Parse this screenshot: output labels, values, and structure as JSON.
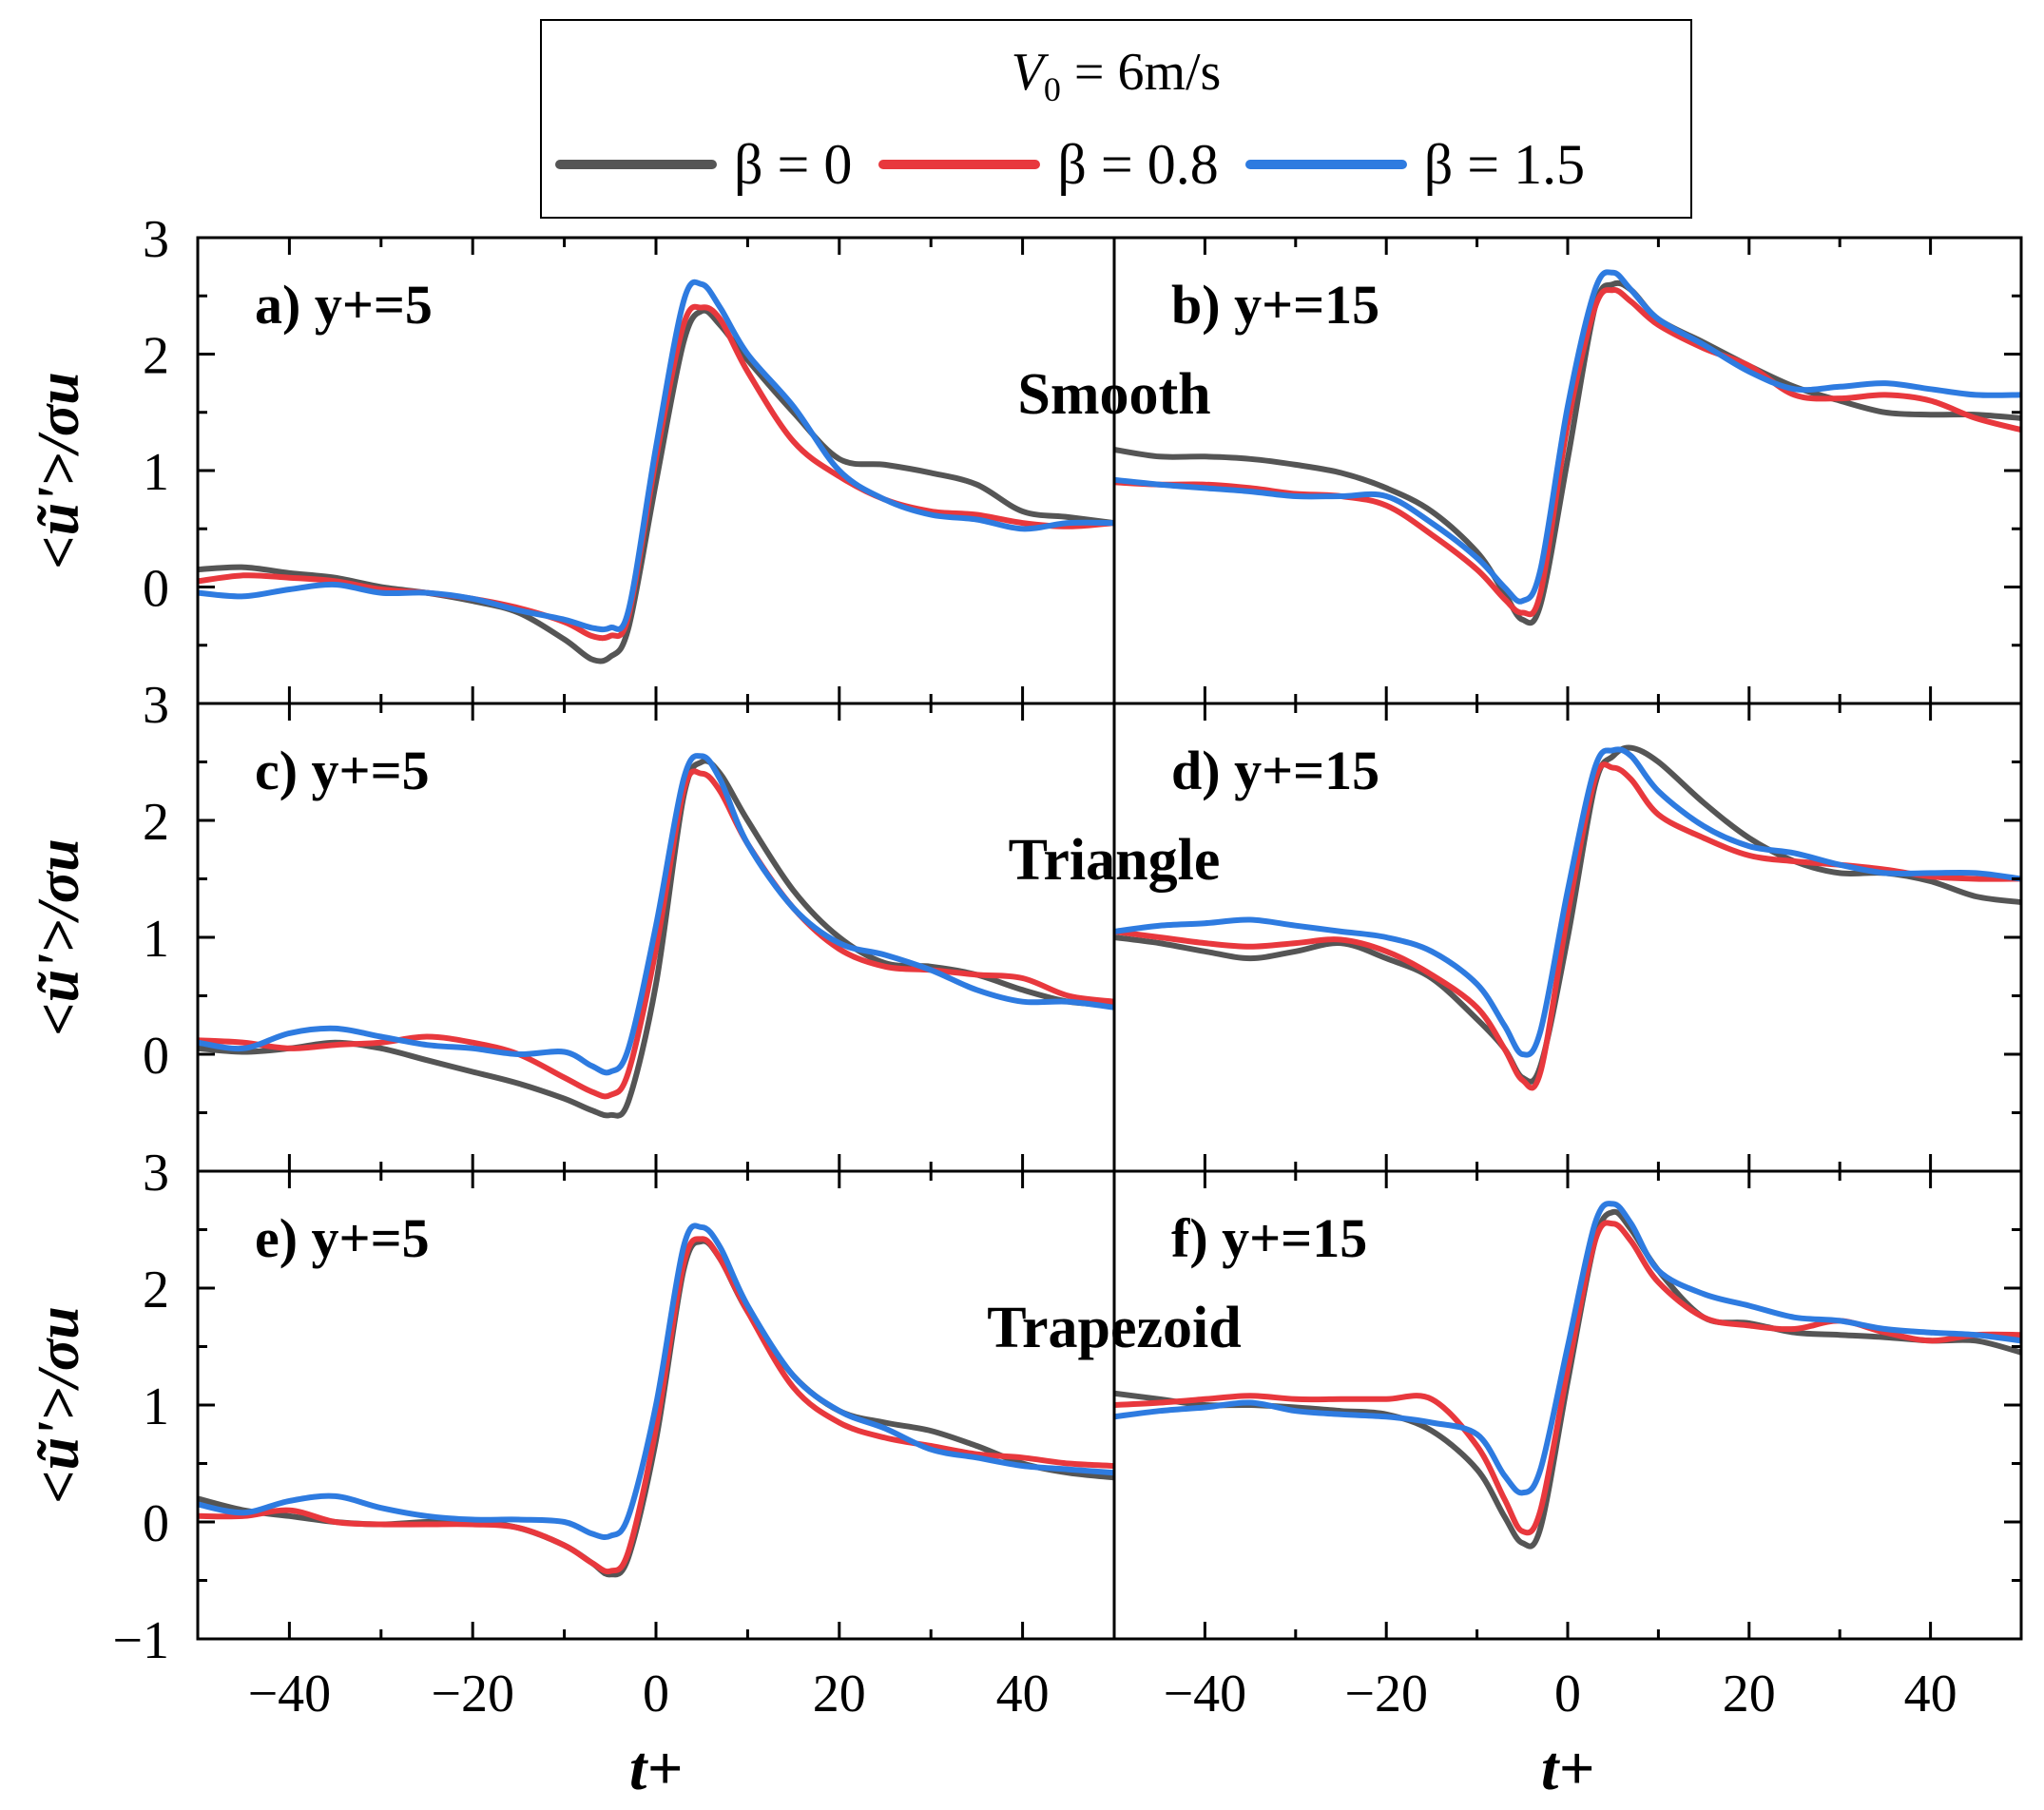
{
  "legend": {
    "title_var": "V",
    "title_sub": "0",
    "title_value": " = 6m/s",
    "items": [
      {
        "label": "β = 0",
        "color": "#555555"
      },
      {
        "label": "β = 0.8",
        "color": "#e8383d"
      },
      {
        "label": "β = 1.5",
        "color": "#2e7be0"
      }
    ]
  },
  "row_labels": [
    "Smooth",
    "Triangle",
    "Trapezoid"
  ],
  "chart_data": {
    "type": "line",
    "xlabel": "t+",
    "ylabel": "<ũ'>/σu",
    "xlim": [
      -50,
      50
    ],
    "xticks": [
      -40,
      -20,
      0,
      20,
      40
    ],
    "ylim": [
      -1,
      3
    ],
    "yticks": [
      -1,
      0,
      1,
      2,
      3
    ],
    "series_names": [
      "β = 0",
      "β = 0.8",
      "β = 1.5"
    ],
    "series_colors": [
      "#555555",
      "#e8383d",
      "#2e7be0"
    ],
    "x": [
      -50,
      -45,
      -40,
      -35,
      -30,
      -25,
      -20,
      -15,
      -10,
      -7,
      -5,
      -3,
      0,
      3,
      5,
      7,
      10,
      15,
      20,
      25,
      30,
      35,
      40,
      45,
      50
    ],
    "panels": [
      {
        "label": "a) y+=5",
        "row": "Smooth",
        "series": [
          {
            "name": "β = 0",
            "values": [
              0.15,
              0.17,
              0.12,
              0.08,
              0.0,
              -0.05,
              -0.12,
              -0.22,
              -0.45,
              -0.62,
              -0.6,
              -0.35,
              0.9,
              2.1,
              2.37,
              2.25,
              1.95,
              1.5,
              1.1,
              1.05,
              0.98,
              0.88,
              0.65,
              0.6,
              0.55
            ]
          },
          {
            "name": "β = 0.8",
            "values": [
              0.05,
              0.1,
              0.08,
              0.05,
              -0.02,
              -0.05,
              -0.1,
              -0.18,
              -0.3,
              -0.42,
              -0.42,
              -0.25,
              1.1,
              2.25,
              2.4,
              2.3,
              1.85,
              1.25,
              0.95,
              0.75,
              0.65,
              0.62,
              0.55,
              0.52,
              0.55
            ]
          },
          {
            "name": "β = 1.5",
            "values": [
              -0.05,
              -0.08,
              -0.02,
              0.02,
              -0.05,
              -0.05,
              -0.1,
              -0.2,
              -0.28,
              -0.35,
              -0.35,
              -0.2,
              1.2,
              2.45,
              2.6,
              2.4,
              2.0,
              1.55,
              1.0,
              0.75,
              0.62,
              0.58,
              0.5,
              0.55,
              0.55
            ]
          }
        ]
      },
      {
        "label": "b) y+=15",
        "row": "Smooth",
        "series": [
          {
            "name": "β = 0",
            "values": [
              1.18,
              1.12,
              1.12,
              1.1,
              1.05,
              0.98,
              0.85,
              0.65,
              0.3,
              -0.05,
              -0.28,
              -0.15,
              1.1,
              2.4,
              2.6,
              2.55,
              2.3,
              2.1,
              1.9,
              1.72,
              1.6,
              1.5,
              1.48,
              1.48,
              1.45
            ]
          },
          {
            "name": "β = 0.8",
            "values": [
              0.9,
              0.88,
              0.88,
              0.85,
              0.8,
              0.78,
              0.7,
              0.45,
              0.15,
              -0.1,
              -0.22,
              -0.05,
              1.4,
              2.4,
              2.55,
              2.45,
              2.25,
              2.05,
              1.9,
              1.65,
              1.62,
              1.65,
              1.6,
              1.45,
              1.35
            ]
          },
          {
            "name": "β = 1.5",
            "values": [
              0.92,
              0.88,
              0.85,
              0.82,
              0.78,
              0.78,
              0.78,
              0.55,
              0.25,
              0.0,
              -0.12,
              0.15,
              1.55,
              2.55,
              2.7,
              2.55,
              2.3,
              2.08,
              1.85,
              1.7,
              1.72,
              1.75,
              1.7,
              1.65,
              1.65
            ]
          }
        ]
      },
      {
        "label": "c) y+=5",
        "row": "Triangle",
        "series": [
          {
            "name": "β = 0",
            "values": [
              0.05,
              0.02,
              0.05,
              0.1,
              0.05,
              -0.05,
              -0.15,
              -0.25,
              -0.38,
              -0.48,
              -0.52,
              -0.4,
              0.6,
              2.2,
              2.5,
              2.4,
              2.0,
              1.4,
              1.0,
              0.78,
              0.75,
              0.68,
              0.55,
              0.45,
              0.42
            ]
          },
          {
            "name": "β = 0.8",
            "values": [
              0.12,
              0.1,
              0.05,
              0.08,
              0.1,
              0.15,
              0.1,
              0.0,
              -0.2,
              -0.32,
              -0.35,
              -0.15,
              0.9,
              2.25,
              2.4,
              2.25,
              1.8,
              1.25,
              0.9,
              0.75,
              0.72,
              0.68,
              0.65,
              0.5,
              0.45
            ]
          },
          {
            "name": "β = 1.5",
            "values": [
              0.1,
              0.05,
              0.18,
              0.22,
              0.15,
              0.08,
              0.05,
              0.0,
              0.02,
              -0.1,
              -0.15,
              0.05,
              1.1,
              2.35,
              2.55,
              2.35,
              1.8,
              1.25,
              0.95,
              0.85,
              0.72,
              0.55,
              0.45,
              0.45,
              0.4
            ]
          }
        ]
      },
      {
        "label": "d) y+=15",
        "row": "Triangle",
        "series": [
          {
            "name": "β = 0",
            "values": [
              1.0,
              0.95,
              0.88,
              0.82,
              0.88,
              0.95,
              0.82,
              0.65,
              0.3,
              0.05,
              -0.2,
              -0.1,
              1.0,
              2.3,
              2.55,
              2.62,
              2.5,
              2.15,
              1.85,
              1.65,
              1.55,
              1.55,
              1.48,
              1.35,
              1.3
            ]
          },
          {
            "name": "β = 0.8",
            "values": [
              1.05,
              1.0,
              0.95,
              0.92,
              0.95,
              0.98,
              0.88,
              0.68,
              0.4,
              0.05,
              -0.22,
              -0.15,
              1.2,
              2.35,
              2.45,
              2.35,
              2.05,
              1.85,
              1.7,
              1.65,
              1.62,
              1.58,
              1.52,
              1.5,
              1.5
            ]
          },
          {
            "name": "β = 1.5",
            "values": [
              1.05,
              1.1,
              1.12,
              1.15,
              1.1,
              1.05,
              1.0,
              0.88,
              0.6,
              0.25,
              0.0,
              0.2,
              1.4,
              2.45,
              2.6,
              2.55,
              2.25,
              1.95,
              1.78,
              1.72,
              1.62,
              1.55,
              1.55,
              1.55,
              1.5
            ]
          }
        ]
      },
      {
        "label": "e) y+=5",
        "row": "Trapezoid",
        "series": [
          {
            "name": "β = 0",
            "values": [
              0.2,
              0.1,
              0.05,
              0.0,
              -0.02,
              0.0,
              0.0,
              -0.05,
              -0.2,
              -0.35,
              -0.45,
              -0.3,
              0.7,
              2.15,
              2.4,
              2.25,
              1.8,
              1.25,
              0.95,
              0.85,
              0.78,
              0.65,
              0.5,
              0.42,
              0.38
            ]
          },
          {
            "name": "β = 0.8",
            "values": [
              0.05,
              0.05,
              0.1,
              0.0,
              -0.02,
              -0.02,
              -0.02,
              -0.05,
              -0.2,
              -0.35,
              -0.42,
              -0.25,
              0.8,
              2.2,
              2.42,
              2.25,
              1.8,
              1.15,
              0.85,
              0.72,
              0.65,
              0.58,
              0.55,
              0.5,
              0.48
            ]
          },
          {
            "name": "β = 1.5",
            "values": [
              0.15,
              0.08,
              0.18,
              0.22,
              0.12,
              0.05,
              0.02,
              0.02,
              0.0,
              -0.1,
              -0.12,
              0.05,
              1.0,
              2.35,
              2.52,
              2.35,
              1.85,
              1.25,
              0.95,
              0.8,
              0.62,
              0.55,
              0.48,
              0.45,
              0.42
            ]
          }
        ]
      },
      {
        "label": "f) y+=15",
        "row": "Trapezoid",
        "series": [
          {
            "name": "β = 0",
            "values": [
              1.1,
              1.05,
              1.0,
              1.0,
              0.98,
              0.95,
              0.92,
              0.78,
              0.45,
              0.05,
              -0.18,
              -0.05,
              1.2,
              2.4,
              2.65,
              2.5,
              2.15,
              1.75,
              1.7,
              1.62,
              1.6,
              1.58,
              1.55,
              1.55,
              1.45
            ]
          },
          {
            "name": "β = 0.8",
            "values": [
              1.0,
              1.02,
              1.05,
              1.08,
              1.05,
              1.05,
              1.05,
              1.05,
              0.65,
              0.2,
              -0.08,
              0.1,
              1.3,
              2.4,
              2.55,
              2.4,
              2.05,
              1.75,
              1.68,
              1.65,
              1.72,
              1.62,
              1.55,
              1.6,
              1.6
            ]
          },
          {
            "name": "β = 1.5",
            "values": [
              0.9,
              0.95,
              0.98,
              1.02,
              0.95,
              0.92,
              0.9,
              0.85,
              0.75,
              0.4,
              0.25,
              0.45,
              1.5,
              2.55,
              2.72,
              2.55,
              2.15,
              1.95,
              1.85,
              1.75,
              1.72,
              1.65,
              1.62,
              1.6,
              1.55
            ]
          }
        ]
      }
    ]
  }
}
